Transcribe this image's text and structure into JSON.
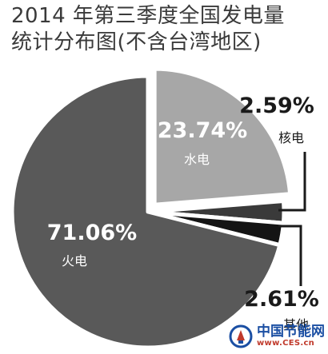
{
  "chart_data": {
    "type": "pie",
    "title_line1": "2014 年第三季度全国发电量",
    "title_line2": "统计分布图(不含台湾地区)",
    "slices": [
      {
        "name": "水电",
        "value": 23.74,
        "label": "23.74%",
        "color": "#a7a7a7",
        "exploded": true
      },
      {
        "name": "核电",
        "value": 2.59,
        "label": "2.59%",
        "color": "#3a3a3a",
        "exploded": false
      },
      {
        "name": "其他",
        "value": 2.61,
        "label": "2.61%",
        "color": "#141414",
        "exploded": false
      },
      {
        "name": "火电",
        "value": 71.06,
        "label": "71.06%",
        "color": "#595959",
        "exploded": false
      }
    ],
    "legend": "none"
  },
  "watermark": {
    "text_cn": "中国节能网",
    "url": "www.CES.cn",
    "logo_icon": "energy-bulb-icon"
  }
}
